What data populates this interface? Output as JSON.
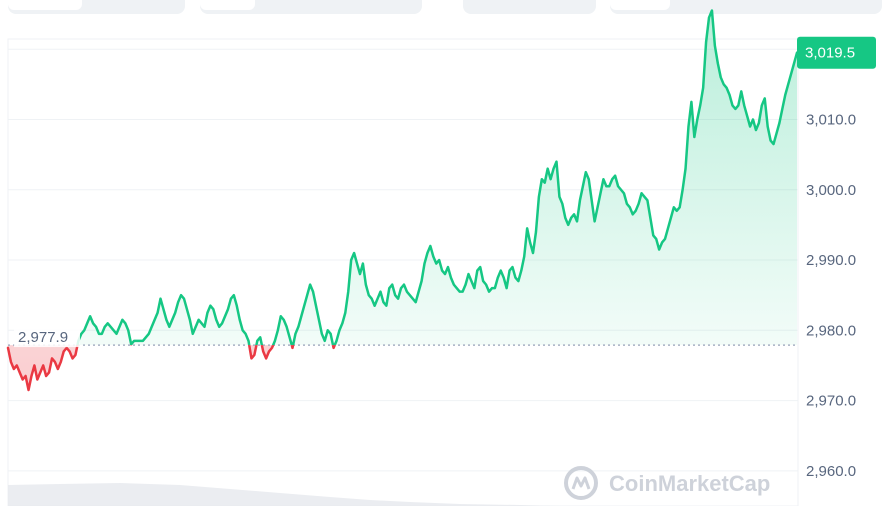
{
  "colors": {
    "up": "#16c784",
    "down": "#ea3943",
    "grid": "#eff2f5",
    "axis_text": "#58667e",
    "watermark": "#c9ced6"
  },
  "tabs": [
    {
      "name": "tab-1"
    },
    {
      "name": "tab-2"
    },
    {
      "name": "tab-3"
    },
    {
      "name": "tab-4"
    }
  ],
  "watermark": {
    "text": "CoinMarketCap",
    "icon": "coinmarketcap-logo-icon"
  },
  "chart_data": {
    "type": "line",
    "title": "",
    "xlabel": "",
    "ylabel": "",
    "ylim": [
      2955,
      3027
    ],
    "y_ticks": [
      2960.0,
      2970.0,
      2980.0,
      2990.0,
      3000.0,
      3010.0
    ],
    "y_tick_labels": [
      "2,960.0",
      "2,970.0",
      "2,980.0",
      "2,990.0",
      "3,000.0",
      "3,010.0"
    ],
    "reference_value": 2977.9,
    "reference_label": "2,977.9",
    "current_value": 3019.5,
    "current_label": "3,019.5",
    "grid": true,
    "series": [
      {
        "values": [
          2977.5,
          2975.5,
          2974.5,
          2975.0,
          2974.0,
          2973.0,
          2973.5,
          2971.5,
          2973.5,
          2975.0,
          2973.0,
          2974.0,
          2975.0,
          2973.5,
          2974.0,
          2976.0,
          2975.5,
          2974.5,
          2975.5,
          2977.0,
          2977.5,
          2977.0,
          2976.0,
          2976.5,
          2978.5,
          2979.5,
          2980.0,
          2981.0,
          2982.0,
          2981.0,
          2980.5,
          2979.5,
          2979.5,
          2980.5,
          2981.0,
          2980.5,
          2980.0,
          2979.5,
          2980.5,
          2981.5,
          2981.0,
          2980.0,
          2978.0,
          2978.5,
          2978.5,
          2978.5,
          2978.5,
          2979.0,
          2979.5,
          2980.5,
          2981.5,
          2982.5,
          2984.5,
          2983.0,
          2981.5,
          2980.5,
          2981.5,
          2982.5,
          2984.0,
          2985.0,
          2984.5,
          2983.0,
          2981.5,
          2979.5,
          2980.5,
          2981.5,
          2981.0,
          2980.5,
          2982.5,
          2983.5,
          2983.0,
          2981.5,
          2980.5,
          2981.0,
          2982.0,
          2983.0,
          2984.5,
          2985.0,
          2983.5,
          2981.5,
          2980.0,
          2979.5,
          2978.5,
          2976.0,
          2976.5,
          2978.5,
          2979.0,
          2977.0,
          2976.0,
          2977.0,
          2977.5,
          2978.5,
          2980.0,
          2982.0,
          2981.5,
          2980.5,
          2979.0,
          2977.5,
          2979.5,
          2980.5,
          2982.0,
          2983.5,
          2985.0,
          2986.5,
          2985.5,
          2983.5,
          2981.5,
          2979.5,
          2978.5,
          2980.0,
          2979.5,
          2977.5,
          2978.5,
          2980.0,
          2981.0,
          2982.5,
          2985.5,
          2990.0,
          2991.0,
          2989.5,
          2988.0,
          2989.5,
          2986.5,
          2985.0,
          2984.5,
          2983.5,
          2984.5,
          2985.5,
          2984.0,
          2983.5,
          2986.0,
          2986.5,
          2985.0,
          2984.5,
          2986.0,
          2986.5,
          2985.5,
          2985.0,
          2984.5,
          2984.0,
          2985.5,
          2987.0,
          2989.5,
          2991.0,
          2992.0,
          2990.5,
          2989.5,
          2990.0,
          2988.5,
          2988.0,
          2989.0,
          2987.5,
          2986.5,
          2986.0,
          2985.5,
          2985.5,
          2986.5,
          2988.0,
          2987.0,
          2986.0,
          2988.5,
          2989.0,
          2987.0,
          2986.5,
          2985.5,
          2986.0,
          2986.0,
          2987.5,
          2988.5,
          2987.5,
          2986.0,
          2988.5,
          2989.0,
          2987.5,
          2987.0,
          2988.5,
          2990.5,
          2994.5,
          2992.5,
          2991.0,
          2994.0,
          2999.0,
          3001.5,
          3001.0,
          3003.0,
          3001.5,
          3003.0,
          3004.0,
          2999.0,
          2998.0,
          2996.0,
          2995.0,
          2996.0,
          2996.5,
          2995.5,
          2998.5,
          3000.5,
          3002.5,
          3001.5,
          2998.5,
          2995.5,
          2997.5,
          2999.5,
          3001.5,
          3000.5,
          3000.5,
          3001.5,
          3002.0,
          3000.5,
          3000.0,
          2999.5,
          2998.0,
          2997.5,
          2996.5,
          2997.0,
          2998.0,
          2999.5,
          2999.0,
          2998.5,
          2996.0,
          2993.5,
          2993.0,
          2991.5,
          2992.5,
          2993.0,
          2994.5,
          2996.0,
          2997.5,
          2997.0,
          2997.5,
          3000.0,
          3003.0,
          3009.0,
          3012.5,
          3007.5,
          3010.0,
          3012.0,
          3014.5,
          3021.0,
          3024.5,
          3025.5,
          3020.5,
          3018.0,
          3016.0,
          3015.0,
          3014.5,
          3013.5,
          3012.0,
          3011.5,
          3012.0,
          3014.0,
          3012.0,
          3010.5,
          3009.0,
          3010.0,
          3008.5,
          3009.5,
          3012.0,
          3013.0,
          3009.0,
          3007.0,
          3006.5,
          3008.0,
          3009.5,
          3011.5,
          3013.5,
          3015.0,
          3016.5,
          3018.0,
          3019.5
        ]
      }
    ]
  }
}
